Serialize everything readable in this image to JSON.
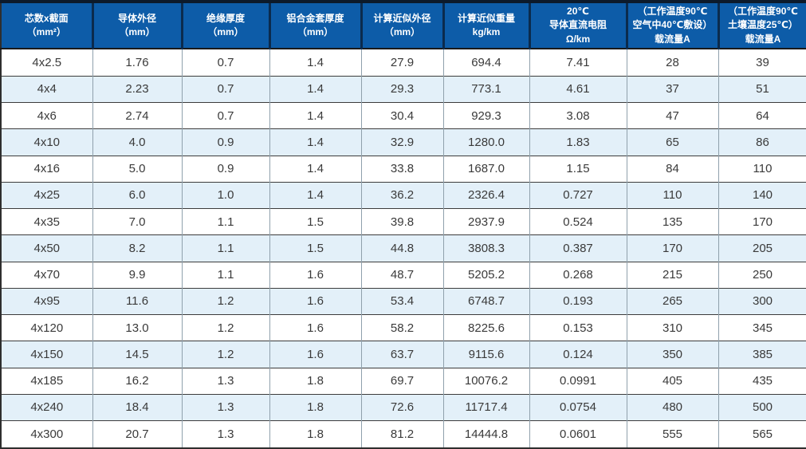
{
  "colors": {
    "header_bg": "#0d5ca8",
    "header_text": "#ffffff",
    "stripe_row_bg": "#e3f0f9",
    "plain_row_bg": "#ffffff",
    "top_bar": "#0c1a2b",
    "grid_horizontal": "#3c3c3c",
    "grid_vertical": "#8fa0ac",
    "cell_text": "#3a3a3a"
  },
  "table": {
    "columns": [
      {
        "id": "core-count-section",
        "lines": [
          "芯数x截面",
          "（mm²）"
        ]
      },
      {
        "id": "conductor-od",
        "lines": [
          "导体外径",
          "（mm）"
        ]
      },
      {
        "id": "insulation-thickness",
        "lines": [
          "绝缘厚度",
          "（mm）"
        ]
      },
      {
        "id": "alloy-sheath-thickness",
        "lines": [
          "铝合金套厚度",
          "（mm）"
        ]
      },
      {
        "id": "calc-approx-od",
        "lines": [
          "计算近似外径",
          "（mm）"
        ]
      },
      {
        "id": "calc-approx-weight",
        "lines": [
          "计算近似重量",
          "kg/km"
        ]
      },
      {
        "id": "dc-resistance-20c",
        "lines": [
          "20℃",
          "导体直流电阻",
          "Ω/km"
        ]
      },
      {
        "id": "ampacity-air",
        "lines": [
          "（工作温度90℃",
          "空气中40℃敷设）",
          "载流量A"
        ]
      },
      {
        "id": "ampacity-soil",
        "lines": [
          "（工作温度90℃",
          "土壤温度25℃）",
          "载流量A"
        ]
      }
    ],
    "rows": [
      [
        "4x2.5",
        "1.76",
        "0.7",
        "1.4",
        "27.9",
        "694.4",
        "7.41",
        "28",
        "39"
      ],
      [
        "4x4",
        "2.23",
        "0.7",
        "1.4",
        "29.3",
        "773.1",
        "4.61",
        "37",
        "51"
      ],
      [
        "4x6",
        "2.74",
        "0.7",
        "1.4",
        "30.4",
        "929.3",
        "3.08",
        "47",
        "64"
      ],
      [
        "4x10",
        "4.0",
        "0.9",
        "1.4",
        "32.9",
        "1280.0",
        "1.83",
        "65",
        "86"
      ],
      [
        "4x16",
        "5.0",
        "0.9",
        "1.4",
        "33.8",
        "1687.0",
        "1.15",
        "84",
        "110"
      ],
      [
        "4x25",
        "6.0",
        "1.0",
        "1.4",
        "36.2",
        "2326.4",
        "0.727",
        "110",
        "140"
      ],
      [
        "4x35",
        "7.0",
        "1.1",
        "1.5",
        "39.8",
        "2937.9",
        "0.524",
        "135",
        "170"
      ],
      [
        "4x50",
        "8.2",
        "1.1",
        "1.5",
        "44.8",
        "3808.3",
        "0.387",
        "170",
        "205"
      ],
      [
        "4x70",
        "9.9",
        "1.1",
        "1.6",
        "48.7",
        "5205.2",
        "0.268",
        "215",
        "250"
      ],
      [
        "4x95",
        "11.6",
        "1.2",
        "1.6",
        "53.4",
        "6748.7",
        "0.193",
        "265",
        "300"
      ],
      [
        "4x120",
        "13.0",
        "1.2",
        "1.6",
        "58.2",
        "8225.6",
        "0.153",
        "310",
        "345"
      ],
      [
        "4x150",
        "14.5",
        "1.2",
        "1.6",
        "63.7",
        "9115.6",
        "0.124",
        "350",
        "385"
      ],
      [
        "4x185",
        "16.2",
        "1.3",
        "1.8",
        "69.7",
        "10076.2",
        "0.0991",
        "405",
        "435"
      ],
      [
        "4x240",
        "18.4",
        "1.3",
        "1.8",
        "72.6",
        "11717.4",
        "0.0754",
        "480",
        "500"
      ],
      [
        "4x300",
        "20.7",
        "1.3",
        "1.8",
        "81.2",
        "14444.8",
        "0.0601",
        "555",
        "565"
      ]
    ]
  }
}
